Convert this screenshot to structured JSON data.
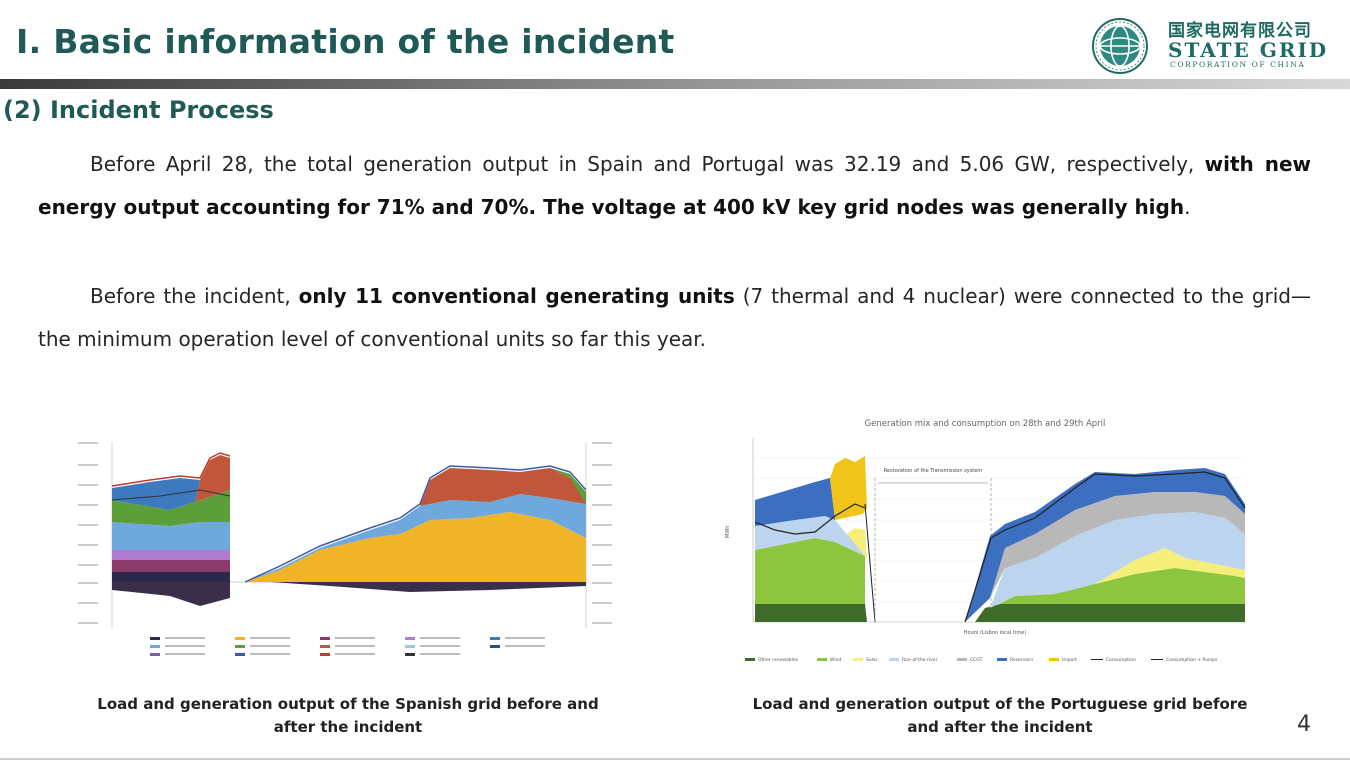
{
  "header": {
    "title": "I. Basic information of the incident",
    "logo_cn": "国家电网有限公司",
    "logo_en": "STATE GRID",
    "logo_sub": "CORPORATION OF CHINA",
    "brand_color": "#1f5a57"
  },
  "section": {
    "subtitle": "(2) Incident Process"
  },
  "paragraph1": {
    "text_a": "Before April 28, the total generation output in Spain and Portugal was 32.19 and 5.06 GW, respectively, ",
    "text_b": "with new energy output accounting for 71% and 70%. The voltage at 400 kV key grid nodes was generally high",
    "text_c": "."
  },
  "paragraph2": {
    "text_a": "Before the incident, ",
    "text_b": "only 11 conventional generating units",
    "text_c": " (7 thermal and 4 nuclear) were connected to the grid—the minimum operation level of conventional units so far this year."
  },
  "figures": {
    "spain_caption": "Load and generation output of the Spanish grid before and after the incident",
    "portugal_caption": "Load and generation output of the Portuguese grid before and after the incident",
    "portugal_chart_title": "Generation mix and consumption on 28th and 29th April",
    "portugal_annotation": "Restoration of the Transmission system",
    "portugal_ylabel": "MWh",
    "portugal_xlabel": "Hours (Lisbon local time)",
    "portugal_legend": [
      "Other renewables",
      "Wind",
      "Solar",
      "Run-of-the-river",
      "CCGT",
      "Reservoirs",
      "Import",
      "Consumption",
      "Consumption + Pumps"
    ]
  },
  "page_number": "4"
}
